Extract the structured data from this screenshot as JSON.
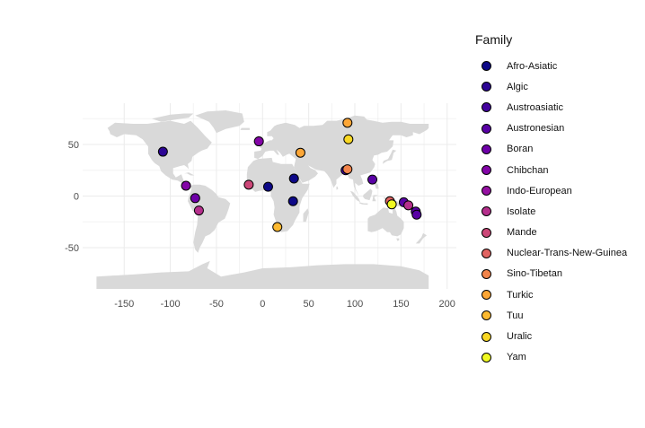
{
  "chart_data": {
    "type": "scatter",
    "title": "",
    "xlabel": "",
    "ylabel": "",
    "xlim": [
      -195,
      210
    ],
    "ylim": [
      -90,
      90
    ],
    "x_ticks": [
      -150,
      -100,
      -50,
      0,
      50,
      100,
      150,
      200
    ],
    "y_ticks": [
      -50,
      0,
      50
    ],
    "x_tick_labels": [
      "-150",
      "-100",
      "-50",
      "0",
      "50",
      "100",
      "150",
      "200"
    ],
    "y_tick_labels": [
      "-50",
      "0",
      "50"
    ],
    "grid": true,
    "background": "world-map",
    "legend_title": "Family",
    "legend_position": "right",
    "families": [
      {
        "name": "Afro-Asiatic",
        "color": "#0d0887"
      },
      {
        "name": "Algic",
        "color": "#2c0594"
      },
      {
        "name": "Austroasiatic",
        "color": "#43039e"
      },
      {
        "name": "Austronesian",
        "color": "#5901a5"
      },
      {
        "name": "Boran",
        "color": "#6e00a8"
      },
      {
        "name": "Chibchan",
        "color": "#8305a7"
      },
      {
        "name": "Indo-European",
        "color": "#9511a1"
      },
      {
        "name": "Isolate",
        "color": "#b52f8c"
      },
      {
        "name": "Mande",
        "color": "#cc4778"
      },
      {
        "name": "Nuclear-Trans-New-Guinea",
        "color": "#e16462"
      },
      {
        "name": "Sino-Tibetan",
        "color": "#f2844b"
      },
      {
        "name": "Turkic",
        "color": "#fca636"
      },
      {
        "name": "Tuu",
        "color": "#fcb930"
      },
      {
        "name": "Uralic",
        "color": "#f9d824"
      },
      {
        "name": "Yam",
        "color": "#f0f921"
      }
    ],
    "points": [
      {
        "lon": -108,
        "lat": 43,
        "family": "Algic"
      },
      {
        "lon": -83,
        "lat": 10,
        "family": "Chibchan"
      },
      {
        "lon": -73,
        "lat": -2,
        "family": "Boran"
      },
      {
        "lon": -69,
        "lat": -14,
        "family": "Isolate"
      },
      {
        "lon": -4,
        "lat": 53,
        "family": "Chibchan"
      },
      {
        "lon": -15,
        "lat": 11,
        "family": "Mande"
      },
      {
        "lon": 6,
        "lat": 9,
        "family": "Afro-Asiatic"
      },
      {
        "lon": 34,
        "lat": 17,
        "family": "Afro-Asiatic"
      },
      {
        "lon": 33,
        "lat": -5,
        "family": "Afro-Asiatic"
      },
      {
        "lon": 16,
        "lat": -30,
        "family": "Tuu"
      },
      {
        "lon": 41,
        "lat": 42,
        "family": "Turkic"
      },
      {
        "lon": 92,
        "lat": 71,
        "family": "Turkic"
      },
      {
        "lon": 93,
        "lat": 55,
        "family": "Uralic"
      },
      {
        "lon": 90,
        "lat": 25,
        "family": "Austroasiatic"
      },
      {
        "lon": 92,
        "lat": 26,
        "family": "Sino-Tibetan"
      },
      {
        "lon": 119,
        "lat": 16,
        "family": "Austronesian"
      },
      {
        "lon": 138,
        "lat": -5,
        "family": "Nuclear-Trans-New-Guinea"
      },
      {
        "lon": 140,
        "lat": -8,
        "family": "Yam"
      },
      {
        "lon": 153,
        "lat": -6,
        "family": "Austronesian"
      },
      {
        "lon": 158,
        "lat": -9,
        "family": "Isolate"
      },
      {
        "lon": 166,
        "lat": -15,
        "family": "Austronesian"
      },
      {
        "lon": 167,
        "lat": -18,
        "family": "Austronesian"
      }
    ]
  }
}
